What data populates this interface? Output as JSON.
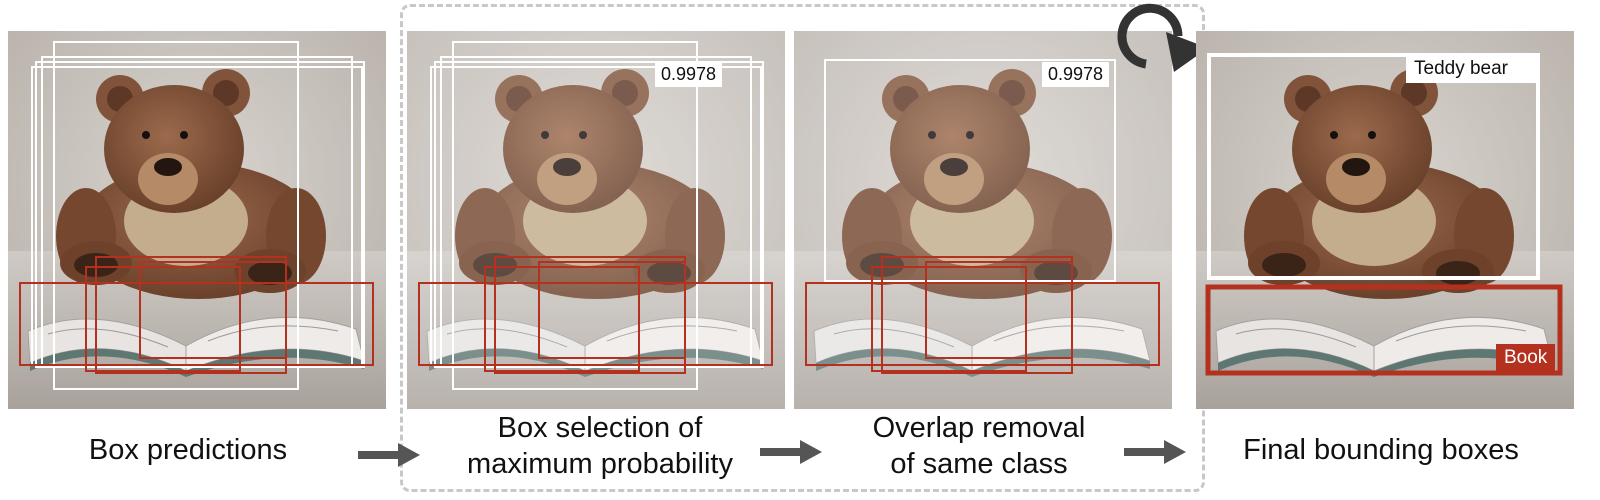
{
  "colors": {
    "background": "#ffffff",
    "box_teddy": "#ffffff",
    "box_book": "#b5311f",
    "dashed_frame": "#c8c8c8",
    "arrow": "#555555",
    "label_text": "#111111"
  },
  "panels": [
    {
      "caption_lines": [
        "Box predictions"
      ]
    },
    {
      "caption_lines": [
        "Box selection of",
        "maximum probability"
      ],
      "score_label": "0.9978"
    },
    {
      "caption_lines": [
        "Overlap removal",
        "of same class"
      ],
      "score_label": "0.9978"
    },
    {
      "caption_lines": [
        "Final bounding boxes"
      ],
      "class_labels": {
        "teddy": "Teddy bear",
        "book": "Book"
      }
    }
  ],
  "icons": {
    "flow_arrow": "right-arrow-icon",
    "loop": "circular-loop-arrow-icon"
  }
}
